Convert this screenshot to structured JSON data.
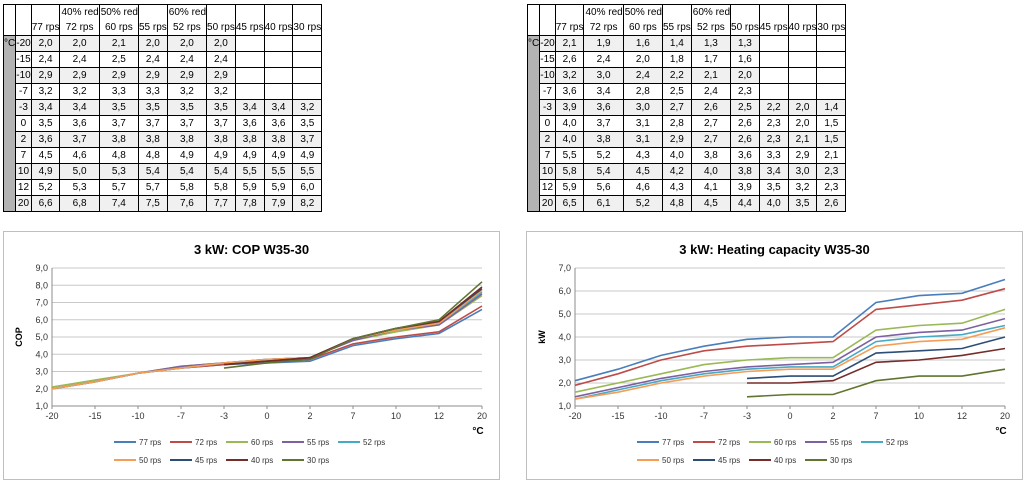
{
  "tables": [
    {
      "unit_label": "°C",
      "notes": [
        "",
        "40% red",
        "50% red",
        "",
        "60% red",
        "",
        "",
        "",
        ""
      ],
      "columns": [
        "77 rps",
        "72 rps",
        "60 rps",
        "55 rps",
        "52 rps",
        "50 rps",
        "45 rps",
        "40 rps",
        "30 rps"
      ],
      "rows": [
        {
          "temp": "-20",
          "values": [
            "2,0",
            "2,0",
            "2,1",
            "2,0",
            "2,0",
            "2,0",
            "",
            "",
            ""
          ]
        },
        {
          "temp": "-15",
          "values": [
            "2,4",
            "2,4",
            "2,5",
            "2,4",
            "2,4",
            "2,4",
            "",
            "",
            ""
          ]
        },
        {
          "temp": "-10",
          "values": [
            "2,9",
            "2,9",
            "2,9",
            "2,9",
            "2,9",
            "2,9",
            "",
            "",
            ""
          ]
        },
        {
          "temp": "-7",
          "values": [
            "3,2",
            "3,2",
            "3,3",
            "3,3",
            "3,2",
            "3,2",
            "",
            "",
            ""
          ]
        },
        {
          "temp": "-3",
          "values": [
            "3,4",
            "3,4",
            "3,5",
            "3,5",
            "3,5",
            "3,5",
            "3,4",
            "3,4",
            "3,2"
          ]
        },
        {
          "temp": "0",
          "values": [
            "3,5",
            "3,6",
            "3,7",
            "3,7",
            "3,7",
            "3,7",
            "3,6",
            "3,6",
            "3,5"
          ]
        },
        {
          "temp": "2",
          "values": [
            "3,6",
            "3,7",
            "3,8",
            "3,8",
            "3,8",
            "3,8",
            "3,8",
            "3,8",
            "3,7"
          ]
        },
        {
          "temp": "7",
          "values": [
            "4,5",
            "4,6",
            "4,8",
            "4,8",
            "4,9",
            "4,9",
            "4,9",
            "4,9",
            "4,9"
          ]
        },
        {
          "temp": "10",
          "values": [
            "4,9",
            "5,0",
            "5,3",
            "5,4",
            "5,4",
            "5,4",
            "5,5",
            "5,5",
            "5,5"
          ]
        },
        {
          "temp": "12",
          "values": [
            "5,2",
            "5,3",
            "5,7",
            "5,7",
            "5,8",
            "5,8",
            "5,9",
            "5,9",
            "6,0"
          ]
        },
        {
          "temp": "20",
          "values": [
            "6,6",
            "6,8",
            "7,4",
            "7,5",
            "7,6",
            "7,7",
            "7,8",
            "7,9",
            "8,2"
          ]
        }
      ]
    },
    {
      "unit_label": "°C",
      "notes": [
        "",
        "40% red",
        "50% red",
        "",
        "60% red",
        "",
        "",
        "",
        ""
      ],
      "columns": [
        "77 rps",
        "72 rps",
        "60 rps",
        "55 rps",
        "52 rps",
        "50 rps",
        "45 rps",
        "40 rps",
        "30 rps"
      ],
      "rows": [
        {
          "temp": "-20",
          "values": [
            "2,1",
            "1,9",
            "1,6",
            "1,4",
            "1,3",
            "1,3",
            "",
            "",
            ""
          ]
        },
        {
          "temp": "-15",
          "values": [
            "2,6",
            "2,4",
            "2,0",
            "1,8",
            "1,7",
            "1,6",
            "",
            "",
            ""
          ]
        },
        {
          "temp": "-10",
          "values": [
            "3,2",
            "3,0",
            "2,4",
            "2,2",
            "2,1",
            "2,0",
            "",
            "",
            ""
          ]
        },
        {
          "temp": "-7",
          "values": [
            "3,6",
            "3,4",
            "2,8",
            "2,5",
            "2,4",
            "2,3",
            "",
            "",
            ""
          ]
        },
        {
          "temp": "-3",
          "values": [
            "3,9",
            "3,6",
            "3,0",
            "2,7",
            "2,6",
            "2,5",
            "2,2",
            "2,0",
            "1,4"
          ]
        },
        {
          "temp": "0",
          "values": [
            "4,0",
            "3,7",
            "3,1",
            "2,8",
            "2,7",
            "2,6",
            "2,3",
            "2,0",
            "1,5"
          ]
        },
        {
          "temp": "2",
          "values": [
            "4,0",
            "3,8",
            "3,1",
            "2,9",
            "2,7",
            "2,6",
            "2,3",
            "2,1",
            "1,5"
          ]
        },
        {
          "temp": "7",
          "values": [
            "5,5",
            "5,2",
            "4,3",
            "4,0",
            "3,8",
            "3,6",
            "3,3",
            "2,9",
            "2,1"
          ]
        },
        {
          "temp": "10",
          "values": [
            "5,8",
            "5,4",
            "4,5",
            "4,2",
            "4,0",
            "3,8",
            "3,4",
            "3,0",
            "2,3"
          ]
        },
        {
          "temp": "12",
          "values": [
            "5,9",
            "5,6",
            "4,6",
            "4,3",
            "4,1",
            "3,9",
            "3,5",
            "3,2",
            "2,3"
          ]
        },
        {
          "temp": "20",
          "values": [
            "6,5",
            "6,1",
            "5,2",
            "4,8",
            "4,5",
            "4,4",
            "4,0",
            "3,5",
            "2,6"
          ]
        }
      ]
    }
  ],
  "chart_data": [
    {
      "type": "line",
      "title": "3 kW: COP W35-30",
      "ylabel": "COP",
      "xlabel": "°C",
      "categories": [
        "-20",
        "-15",
        "-10",
        "-7",
        "-3",
        "0",
        "2",
        "7",
        "10",
        "12",
        "20"
      ],
      "ylim": [
        1.0,
        9.0
      ],
      "ytick_step": 1.0,
      "ytick_labels": [
        "1,0",
        "2,0",
        "3,0",
        "4,0",
        "5,0",
        "6,0",
        "7,0",
        "8,0",
        "9,0"
      ],
      "grid": true,
      "legend": "bottom",
      "series": [
        {
          "name": "77 rps",
          "color": "#4a7ebb",
          "values": [
            2.0,
            2.4,
            2.9,
            3.2,
            3.4,
            3.5,
            3.6,
            4.5,
            4.9,
            5.2,
            6.6
          ]
        },
        {
          "name": "72 rps",
          "color": "#be4b48",
          "values": [
            2.0,
            2.4,
            2.9,
            3.2,
            3.4,
            3.6,
            3.7,
            4.6,
            5.0,
            5.3,
            6.8
          ]
        },
        {
          "name": "60 rps",
          "color": "#98b954",
          "values": [
            2.1,
            2.5,
            2.9,
            3.3,
            3.5,
            3.7,
            3.8,
            4.8,
            5.3,
            5.7,
            7.4
          ]
        },
        {
          "name": "55 rps",
          "color": "#7d60a0",
          "values": [
            2.0,
            2.4,
            2.9,
            3.3,
            3.5,
            3.7,
            3.8,
            4.8,
            5.4,
            5.7,
            7.5
          ]
        },
        {
          "name": "52 rps",
          "color": "#46aac4",
          "values": [
            2.0,
            2.4,
            2.9,
            3.2,
            3.5,
            3.7,
            3.8,
            4.9,
            5.4,
            5.8,
            7.6
          ]
        },
        {
          "name": "50 rps",
          "color": "#f59d56",
          "values": [
            2.0,
            2.4,
            2.9,
            3.2,
            3.5,
            3.7,
            3.8,
            4.9,
            5.4,
            5.8,
            7.7
          ]
        },
        {
          "name": "45 rps",
          "color": "#2c4d75",
          "values": [
            null,
            null,
            null,
            null,
            3.4,
            3.6,
            3.8,
            4.9,
            5.5,
            5.9,
            7.8
          ]
        },
        {
          "name": "40 rps",
          "color": "#772c2a",
          "values": [
            null,
            null,
            null,
            null,
            3.4,
            3.6,
            3.8,
            4.9,
            5.5,
            5.9,
            7.9
          ]
        },
        {
          "name": "30 rps",
          "color": "#5f7530",
          "values": [
            null,
            null,
            null,
            null,
            3.2,
            3.5,
            3.7,
            4.9,
            5.5,
            6.0,
            8.2
          ]
        }
      ]
    },
    {
      "type": "line",
      "title": "3 kW: Heating capacity W35-30",
      "ylabel": "kW",
      "xlabel": "°C",
      "categories": [
        "-20",
        "-15",
        "-10",
        "-7",
        "-3",
        "0",
        "2",
        "7",
        "10",
        "12",
        "20"
      ],
      "ylim": [
        1.0,
        7.0
      ],
      "ytick_step": 1.0,
      "ytick_labels": [
        "1,0",
        "2,0",
        "3,0",
        "4,0",
        "5,0",
        "6,0",
        "7,0"
      ],
      "grid": true,
      "legend": "bottom",
      "series": [
        {
          "name": "77 rps",
          "color": "#4a7ebb",
          "values": [
            2.1,
            2.6,
            3.2,
            3.6,
            3.9,
            4.0,
            4.0,
            5.5,
            5.8,
            5.9,
            6.5
          ]
        },
        {
          "name": "72 rps",
          "color": "#be4b48",
          "values": [
            1.9,
            2.4,
            3.0,
            3.4,
            3.6,
            3.7,
            3.8,
            5.2,
            5.4,
            5.6,
            6.1
          ]
        },
        {
          "name": "60 rps",
          "color": "#98b954",
          "values": [
            1.6,
            2.0,
            2.4,
            2.8,
            3.0,
            3.1,
            3.1,
            4.3,
            4.5,
            4.6,
            5.2
          ]
        },
        {
          "name": "55 rps",
          "color": "#7d60a0",
          "values": [
            1.4,
            1.8,
            2.2,
            2.5,
            2.7,
            2.8,
            2.9,
            4.0,
            4.2,
            4.3,
            4.8
          ]
        },
        {
          "name": "52 rps",
          "color": "#46aac4",
          "values": [
            1.3,
            1.7,
            2.1,
            2.4,
            2.6,
            2.7,
            2.7,
            3.8,
            4.0,
            4.1,
            4.5
          ]
        },
        {
          "name": "50 rps",
          "color": "#f59d56",
          "values": [
            1.3,
            1.6,
            2.0,
            2.3,
            2.5,
            2.6,
            2.6,
            3.6,
            3.8,
            3.9,
            4.4
          ]
        },
        {
          "name": "45 rps",
          "color": "#2c4d75",
          "values": [
            null,
            null,
            null,
            null,
            2.2,
            2.3,
            2.3,
            3.3,
            3.4,
            3.5,
            4.0
          ]
        },
        {
          "name": "40 rps",
          "color": "#772c2a",
          "values": [
            null,
            null,
            null,
            null,
            2.0,
            2.0,
            2.1,
            2.9,
            3.0,
            3.2,
            3.5
          ]
        },
        {
          "name": "30 rps",
          "color": "#5f7530",
          "values": [
            null,
            null,
            null,
            null,
            1.4,
            1.5,
            1.5,
            2.1,
            2.3,
            2.3,
            2.6
          ]
        }
      ]
    }
  ]
}
